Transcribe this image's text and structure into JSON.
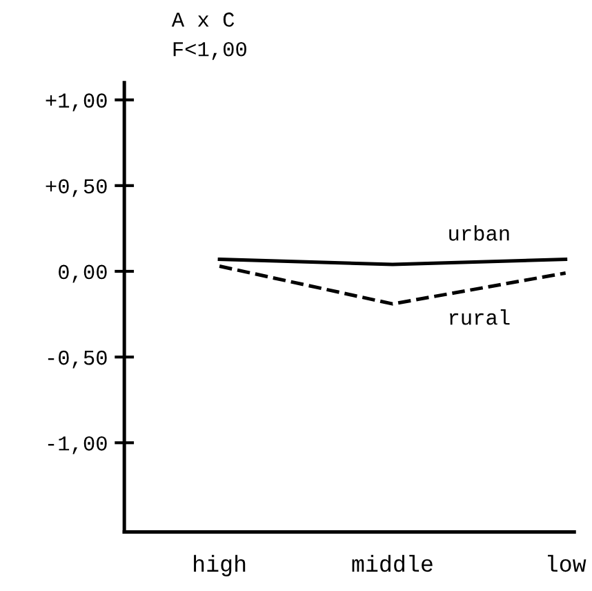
{
  "chart_data": {
    "type": "line",
    "title": "A x C",
    "subtitle": "F<1,00",
    "categories": [
      "high",
      "middle",
      "low"
    ],
    "series": [
      {
        "name": "urban",
        "color": "#000000",
        "line_style": "solid",
        "values": [
          0.07,
          0.04,
          0.07
        ]
      },
      {
        "name": "rural",
        "color": "#000000",
        "line_style": "dashed",
        "values": [
          0.03,
          -0.19,
          -0.01
        ]
      }
    ],
    "ylim": [
      -1.52,
      1.1
    ],
    "yticks": [
      {
        "value": 1.0,
        "label": "+1,00"
      },
      {
        "value": 0.5,
        "label": "+0,50"
      },
      {
        "value": 0,
        "label": "0,00"
      },
      {
        "value": -0.5,
        "label": "-0,50"
      },
      {
        "value": -1.0,
        "label": "-1,00"
      }
    ],
    "grid": false,
    "legend": false,
    "marker": "none"
  }
}
